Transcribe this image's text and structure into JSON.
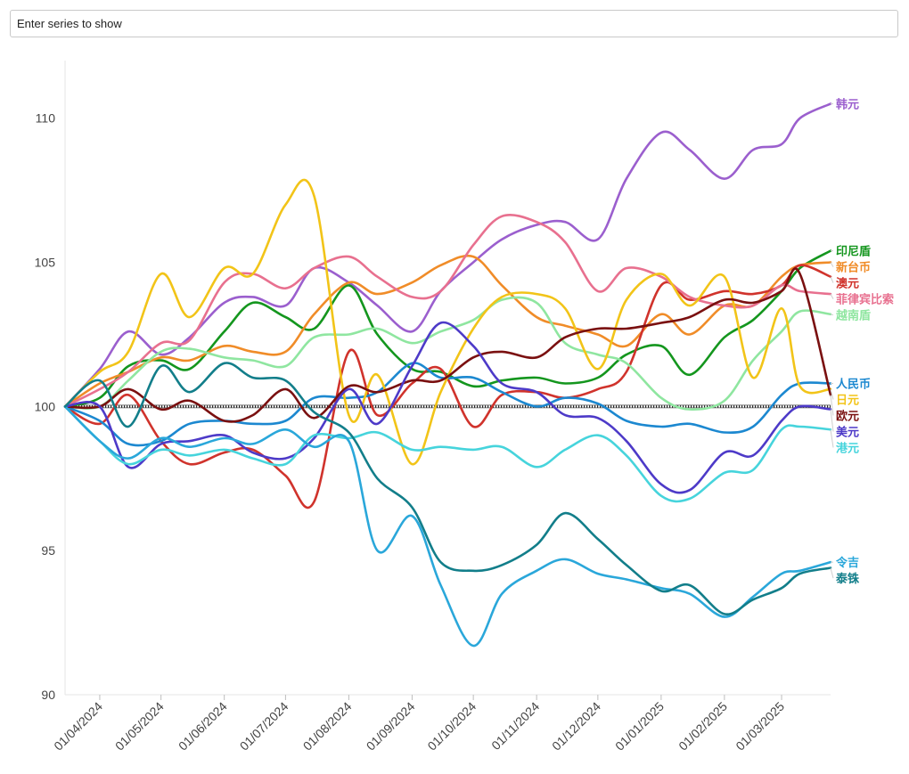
{
  "search": {
    "placeholder": "Enter series to show"
  },
  "chart_data": {
    "type": "line",
    "title": "",
    "xlabel": "",
    "ylabel": "",
    "ylim": [
      90,
      112
    ],
    "y_ticks": [
      90,
      95,
      100,
      105,
      110
    ],
    "x_range": [
      "2024-03-15",
      "2025-03-25"
    ],
    "x_tick_labels": [
      {
        "date": "2024-04-01",
        "label": "01/04/2024"
      },
      {
        "date": "2024-05-01",
        "label": "01/05/2024"
      },
      {
        "date": "2024-06-01",
        "label": "01/06/2024"
      },
      {
        "date": "2024-07-01",
        "label": "01/07/2024"
      },
      {
        "date": "2024-08-01",
        "label": "01/08/2024"
      },
      {
        "date": "2024-09-01",
        "label": "01/09/2024"
      },
      {
        "date": "2024-10-01",
        "label": "01/10/2024"
      },
      {
        "date": "2024-11-01",
        "label": "01/11/2024"
      },
      {
        "date": "2024-12-01",
        "label": "01/12/2024"
      },
      {
        "date": "2025-01-01",
        "label": "01/01/2025"
      },
      {
        "date": "2025-02-01",
        "label": "01/02/2025"
      },
      {
        "date": "2025-03-01",
        "label": "01/03/2025"
      }
    ],
    "reference_line": 100,
    "legend": "end-of-line labels",
    "x": [
      "2024-03-15",
      "2024-04-01",
      "2024-04-15",
      "2024-05-01",
      "2024-05-15",
      "2024-06-01",
      "2024-06-15",
      "2024-07-01",
      "2024-07-15",
      "2024-08-01",
      "2024-08-15",
      "2024-09-01",
      "2024-09-15",
      "2024-10-01",
      "2024-10-15",
      "2024-11-01",
      "2024-11-15",
      "2024-12-01",
      "2024-12-15",
      "2025-01-01",
      "2025-01-15",
      "2025-02-01",
      "2025-02-15",
      "2025-03-01",
      "2025-03-10",
      "2025-03-25"
    ],
    "series": [
      {
        "name": "韩元",
        "color": "#9b5fce",
        "values": [
          100,
          101.3,
          102.6,
          101.8,
          102.4,
          103.6,
          103.8,
          103.5,
          104.8,
          104.3,
          103.5,
          102.6,
          104.0,
          105.0,
          105.8,
          106.3,
          106.4,
          105.8,
          107.9,
          109.5,
          108.9,
          107.9,
          108.9,
          109.1,
          110.0,
          110.5
        ]
      },
      {
        "name": "印尼盾",
        "color": "#14961e",
        "values": [
          100,
          100.3,
          101.4,
          101.6,
          101.3,
          102.6,
          103.6,
          103.1,
          102.7,
          104.2,
          102.5,
          101.3,
          101.2,
          100.7,
          100.9,
          101.0,
          100.8,
          101.0,
          101.8,
          102.1,
          101.1,
          102.4,
          103.0,
          104.0,
          104.8,
          105.4
        ]
      },
      {
        "name": "新台币",
        "color": "#f08c28",
        "values": [
          100,
          100.8,
          101.2,
          101.7,
          101.6,
          102.1,
          101.9,
          101.9,
          103.2,
          104.3,
          103.9,
          104.3,
          104.9,
          105.2,
          104.2,
          103.1,
          102.8,
          102.5,
          102.1,
          103.2,
          102.5,
          103.5,
          103.5,
          104.5,
          104.9,
          105.0
        ]
      },
      {
        "name": "澳元",
        "color": "#d0332c",
        "values": [
          100,
          99.4,
          100.4,
          98.8,
          98.0,
          98.4,
          98.5,
          97.6,
          96.7,
          101.9,
          99.7,
          100.8,
          101.3,
          99.3,
          100.4,
          100.5,
          100.3,
          100.6,
          101.2,
          104.2,
          103.7,
          104.0,
          103.9,
          104.2,
          104.9,
          104.5
        ]
      },
      {
        "name": "菲律宾比索",
        "color": "#e8708f",
        "values": [
          100,
          100.6,
          101.2,
          102.2,
          102.3,
          104.3,
          104.6,
          104.1,
          104.8,
          105.2,
          104.5,
          103.8,
          104.0,
          105.6,
          106.6,
          106.4,
          105.7,
          104.0,
          104.8,
          104.5,
          103.8,
          103.5,
          103.5,
          104.2,
          104.0,
          103.9
        ]
      },
      {
        "name": "越南盾",
        "color": "#8fe6a0",
        "values": [
          100,
          100.0,
          100.9,
          101.9,
          102.0,
          101.7,
          101.6,
          101.4,
          102.4,
          102.5,
          102.7,
          102.2,
          102.6,
          103.0,
          103.7,
          103.6,
          102.2,
          101.8,
          101.5,
          100.3,
          99.9,
          100.2,
          101.6,
          102.6,
          103.3,
          103.2
        ]
      },
      {
        "name": "人民币",
        "color": "#1c88d0",
        "values": [
          100,
          99.5,
          98.7,
          98.8,
          99.4,
          99.5,
          99.4,
          99.5,
          100.3,
          100.3,
          100.5,
          101.5,
          101.0,
          101.0,
          100.5,
          100.0,
          100.3,
          100.1,
          99.5,
          99.3,
          99.4,
          99.1,
          99.3,
          100.4,
          100.8,
          100.8
        ]
      },
      {
        "name": "日元",
        "color": "#f2c418",
        "values": [
          100,
          101.2,
          101.9,
          104.6,
          103.1,
          104.8,
          104.6,
          107.0,
          107.3,
          99.7,
          101.1,
          98.0,
          100.5,
          102.7,
          103.8,
          103.9,
          103.4,
          101.3,
          103.7,
          104.6,
          103.5,
          104.5,
          101.0,
          103.4,
          100.7,
          100.6
        ]
      },
      {
        "name": "欧元",
        "color": "#7a1010",
        "values": [
          100,
          100.0,
          100.6,
          99.9,
          100.2,
          99.5,
          99.7,
          100.6,
          99.6,
          100.7,
          100.5,
          100.9,
          100.9,
          101.7,
          101.9,
          101.7,
          102.4,
          102.7,
          102.7,
          102.9,
          103.1,
          103.7,
          103.6,
          104.0,
          104.6,
          100.4
        ]
      },
      {
        "name": "美元",
        "color": "#4d3ac8",
        "values": [
          100,
          100.0,
          97.9,
          98.7,
          98.8,
          99.0,
          98.4,
          98.2,
          98.9,
          100.6,
          99.4,
          101.4,
          102.9,
          102.1,
          100.8,
          100.5,
          99.7,
          99.6,
          98.8,
          97.3,
          97.1,
          98.4,
          98.3,
          99.5,
          100.0,
          99.9
        ]
      },
      {
        "name": "港元",
        "color": "#46d4dc",
        "values": [
          100,
          98.8,
          98.0,
          98.5,
          98.3,
          98.5,
          98.2,
          98.0,
          99.0,
          98.9,
          99.1,
          98.5,
          98.6,
          98.5,
          98.6,
          97.9,
          98.5,
          99.0,
          98.3,
          96.9,
          96.8,
          97.7,
          97.8,
          99.2,
          99.3,
          99.2
        ]
      },
      {
        "name": "令吉",
        "color": "#2aa7da",
        "values": [
          100,
          98.8,
          98.2,
          98.9,
          98.6,
          98.9,
          98.7,
          99.2,
          98.6,
          98.8,
          95.0,
          96.2,
          93.8,
          91.7,
          93.5,
          94.3,
          94.7,
          94.2,
          94.0,
          93.7,
          93.5,
          92.7,
          93.4,
          94.2,
          94.3,
          94.6
        ]
      },
      {
        "name": "泰铢",
        "color": "#127e8a",
        "values": [
          100,
          100.9,
          99.3,
          101.4,
          100.5,
          101.5,
          101.0,
          100.9,
          99.8,
          99.1,
          97.5,
          96.5,
          94.6,
          94.3,
          94.5,
          95.2,
          96.3,
          95.4,
          94.5,
          93.6,
          93.8,
          92.8,
          93.3,
          93.7,
          94.2,
          94.4
        ]
      }
    ],
    "end_labels": [
      {
        "series": "韩元",
        "color": "#9b5fce"
      },
      {
        "series": "印尼盾",
        "color": "#14961e"
      },
      {
        "series": "新台币",
        "color": "#f08c28"
      },
      {
        "series": "澳元",
        "color": "#d0332c"
      },
      {
        "series": "菲律宾比索",
        "color": "#e8708f"
      },
      {
        "series": "越南盾",
        "color": "#8fe6a0"
      },
      {
        "series": "人民币",
        "color": "#1c88d0"
      },
      {
        "series": "日元",
        "color": "#f2c418"
      },
      {
        "series": "欧元",
        "color": "#7a1010"
      },
      {
        "series": "美元",
        "color": "#4d3ac8"
      },
      {
        "series": "港元",
        "color": "#46d4dc"
      },
      {
        "series": "令吉",
        "color": "#2aa7da"
      },
      {
        "series": "泰铢",
        "color": "#127e8a"
      }
    ]
  }
}
